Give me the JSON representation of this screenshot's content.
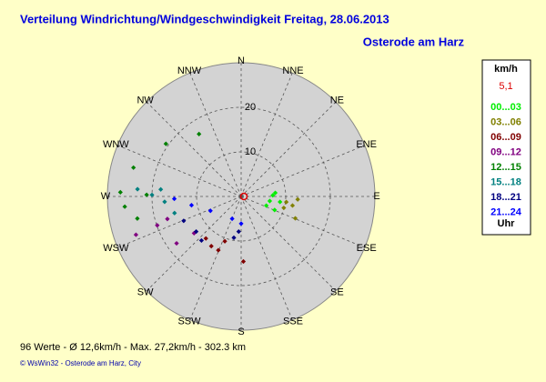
{
  "chart_data": {
    "type": "polar-scatter",
    "title": "Verteilung Windrichtung/Windgeschwindigkeit  Freitag, 28.06.2013",
    "subtitle": "Osterode am Harz",
    "directions": [
      "N",
      "NNE",
      "NE",
      "ENE",
      "E",
      "ESE",
      "SE",
      "SSE",
      "S",
      "SSW",
      "SW",
      "WSW",
      "W",
      "WNW",
      "NW",
      "NNW"
    ],
    "rlim": [
      0,
      30
    ],
    "rticks": [
      10,
      20
    ],
    "legend_title": "km/h",
    "current_value": "5,1",
    "legend_footer": "Uhr",
    "series": [
      {
        "name": "00...03",
        "color": "#00ee00",
        "direction": [
          88,
          99,
          110,
          84,
          98,
          112
        ],
        "values": [
          7.1,
          6.5,
          6.0,
          7.7,
          8.8,
          8.1
        ]
      },
      {
        "name": "03...06",
        "color": "#808000",
        "direction": [
          97,
          100,
          93,
          105,
          112
        ],
        "values": [
          10.2,
          11.7,
          12.7,
          9.9,
          13.1
        ]
      },
      {
        "name": "06...09",
        "color": "#800000",
        "direction": [
          220,
          211,
          200,
          178,
          203
        ],
        "values": [
          12.3,
          13.0,
          10.7,
          14.6,
          13.1
        ]
      },
      {
        "name": "09...12",
        "color": "#800080",
        "direction": [
          250,
          251,
          234,
          253,
          232
        ],
        "values": [
          25.1,
          19.9,
          17.9,
          17.3,
          13.4
        ]
      },
      {
        "name": "12...15",
        "color": "#008000",
        "direction": [
          285,
          272,
          265,
          258,
          305,
          326,
          271
        ],
        "values": [
          25.0,
          27.1,
          26.2,
          23.8,
          20.6,
          16.9,
          21.2
        ]
      },
      {
        "name": "15...18",
        "color": "#008080",
        "direction": [
          274,
          271,
          266,
          256,
          275
        ],
        "values": [
          23.3,
          20.0,
          17.2,
          15.4,
          18.1
        ]
      },
      {
        "name": "18...21",
        "color": "#000080",
        "direction": [
          232,
          247,
          222,
          190,
          184
        ],
        "values": [
          12.8,
          14.0,
          13.3,
          9.4,
          7.9
        ]
      },
      {
        "name": "21...24",
        "color": "#0000ff",
        "direction": [
          268,
          260,
          202,
          180,
          245
        ],
        "values": [
          15.0,
          11.3,
          5.4,
          6.1,
          7.6
        ]
      }
    ],
    "footer_stats": "96 Werte   -   Ø 12,6km/h  -  Max. 27,2km/h  -   302.3 km",
    "footer_credit": "© WsWin32  -  Osterode am Harz, City"
  }
}
